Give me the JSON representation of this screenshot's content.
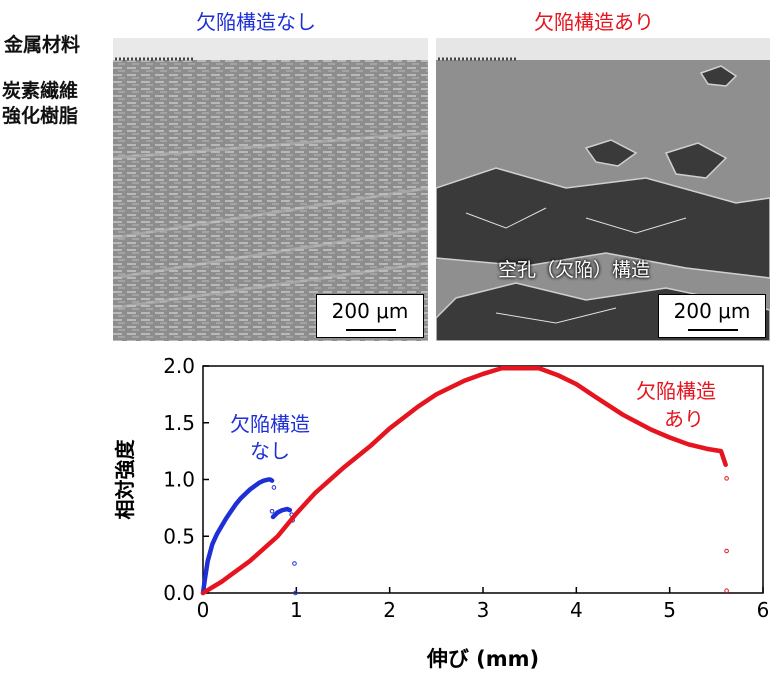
{
  "figure": {
    "panel_left_title": "欠陥構造なし",
    "panel_right_title": "欠陥構造あり",
    "metal_label": "金属材料",
    "cfrp_label_line1": "炭素繊維",
    "cfrp_label_line2": "強化樹脂",
    "scale_left": "200 μm",
    "scale_right": "200 μm",
    "void_label": "空孔（欠陥）構造",
    "colors": {
      "blue": "#1f2fd6",
      "red": "#e6141e"
    }
  },
  "chart_data": {
    "type": "scatter",
    "xlabel": "伸び (mm)",
    "ylabel": "相対強度",
    "xlim": [
      0,
      6
    ],
    "ylim": [
      0,
      2.0
    ],
    "xticks": [
      "0",
      "1",
      "2",
      "3",
      "4",
      "5",
      "6"
    ],
    "yticks": [
      "0.0",
      "0.5",
      "1.0",
      "1.5",
      "2.0"
    ],
    "series": [
      {
        "name": "欠陥構造なし",
        "legend_line1": "欠陥構造",
        "legend_line2": "なし",
        "color": "#1f2fd6",
        "x": [
          0,
          0.02,
          0.05,
          0.1,
          0.15,
          0.2,
          0.25,
          0.3,
          0.35,
          0.4,
          0.45,
          0.5,
          0.55,
          0.6,
          0.65,
          0.7,
          0.72,
          0.74
        ],
        "y": [
          0,
          0.12,
          0.28,
          0.43,
          0.52,
          0.59,
          0.66,
          0.72,
          0.78,
          0.83,
          0.87,
          0.91,
          0.94,
          0.97,
          0.99,
          1.0,
          1.0,
          0.99
        ],
        "x2": [
          0.75,
          0.8,
          0.85,
          0.9,
          0.93
        ],
        "y2": [
          0.67,
          0.71,
          0.73,
          0.74,
          0.73
        ],
        "dots": [
          [
            0.76,
            0.93
          ],
          [
            0.74,
            0.72
          ],
          [
            0.95,
            0.69
          ],
          [
            0.96,
            0.64
          ],
          [
            0.98,
            0.26
          ],
          [
            0.99,
            0.0
          ]
        ]
      },
      {
        "name": "欠陥構造あり",
        "legend_line1": "欠陥構造",
        "legend_line2": "あり",
        "color": "#e6141e",
        "x": [
          0,
          0.1,
          0.2,
          0.3,
          0.5,
          0.8,
          1.0,
          1.2,
          1.5,
          1.8,
          2.0,
          2.3,
          2.5,
          2.8,
          3.0,
          3.2,
          3.4,
          3.6,
          3.8,
          4.0,
          4.2,
          4.5,
          4.8,
          5.0,
          5.2,
          5.4,
          5.55,
          5.6
        ],
        "y": [
          0,
          0.05,
          0.1,
          0.16,
          0.28,
          0.5,
          0.7,
          0.88,
          1.1,
          1.3,
          1.45,
          1.64,
          1.75,
          1.87,
          1.93,
          1.98,
          1.98,
          1.98,
          1.92,
          1.84,
          1.73,
          1.57,
          1.44,
          1.37,
          1.31,
          1.27,
          1.25,
          1.13
        ],
        "dots": [
          [
            5.61,
            1.01
          ],
          [
            5.61,
            0.37
          ],
          [
            5.61,
            0.02
          ]
        ]
      }
    ]
  }
}
